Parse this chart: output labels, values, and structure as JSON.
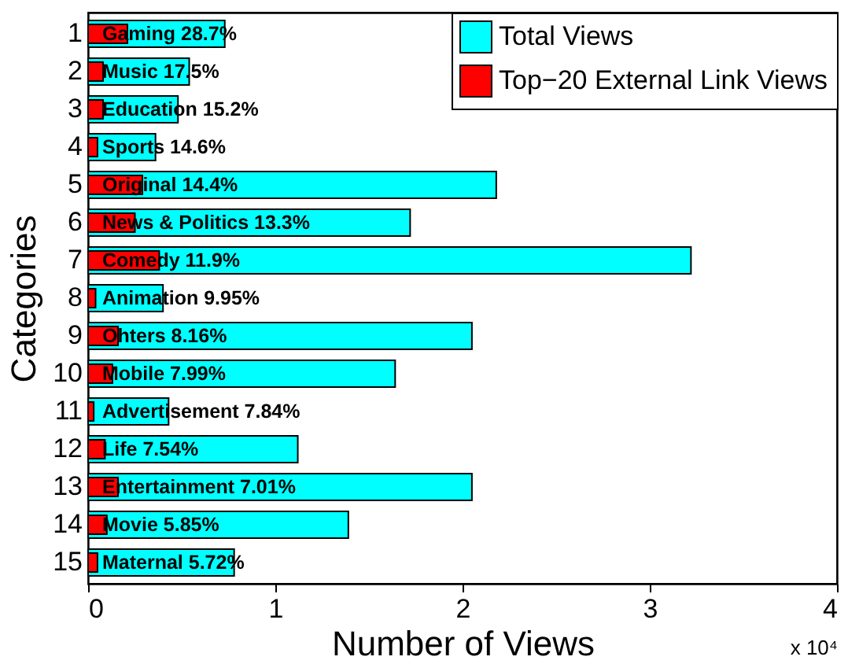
{
  "chart_data": {
    "type": "bar",
    "orientation": "horizontal",
    "xlabel": "Number of Views",
    "ylabel": "Categories",
    "categories": [
      "1",
      "2",
      "3",
      "4",
      "5",
      "6",
      "7",
      "8",
      "9",
      "10",
      "11",
      "12",
      "13",
      "14",
      "15"
    ],
    "series": [
      {
        "name": "Total Views",
        "color": "#00ffff",
        "values": [
          0.73,
          0.54,
          0.48,
          0.36,
          2.18,
          1.72,
          3.22,
          0.4,
          2.05,
          1.64,
          0.43,
          1.12,
          2.05,
          1.39,
          0.78
        ]
      },
      {
        "name": "Top−20 External Link Views",
        "color": "#ff0000",
        "values": [
          0.21,
          0.08,
          0.08,
          0.05,
          0.29,
          0.25,
          0.38,
          0.04,
          0.16,
          0.13,
          0.03,
          0.09,
          0.16,
          0.1,
          0.05
        ]
      }
    ],
    "xlim": [
      0,
      4
    ],
    "xticks": [
      0,
      1,
      2,
      3,
      4
    ],
    "legend": "top right",
    "grid": false,
    "annotations": [
      "Gaming 28.7%",
      "Music 17.5%",
      "Education 15.2%",
      "Sports 14.6%",
      "Original 14.4%",
      "News & Politics 13.3%",
      "Comedy 11.9%",
      "Animation 9.95%",
      "Ohters 8.16%",
      "Mobile 7.99%",
      "Advertisement 7.84%",
      "Life 7.54%",
      "Entertainment 7.01%",
      "Movie 5.85%",
      "Maternal 5.72%",
      "x 10⁴"
    ]
  }
}
